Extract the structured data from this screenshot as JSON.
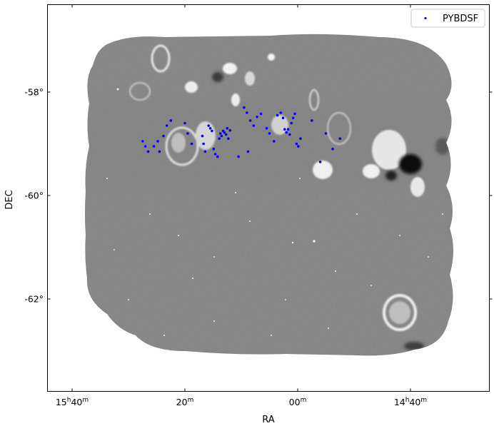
{
  "chart_data": {
    "type": "scatter",
    "xlabel": "RA",
    "ylabel": "DEC",
    "x_ticks": [
      {
        "h": "15",
        "m": "40"
      },
      {
        "h": "",
        "m": "20"
      },
      {
        "h": "",
        "m": "00"
      },
      {
        "h": "14",
        "m": "40"
      }
    ],
    "y_ticks": [
      "-58°",
      "-60°",
      "-62°"
    ],
    "legend": {
      "label": "PYBDSF",
      "position": "top-right"
    },
    "series": [
      {
        "name": "PYBDSF",
        "marker": "point",
        "color": "#0000ff",
        "points": [
          {
            "ra": "15h27.5m",
            "dec": -58.95
          },
          {
            "ra": "15h27.0m",
            "dec": -59.05
          },
          {
            "ra": "15h26.5m",
            "dec": -59.15
          },
          {
            "ra": "15h25.5m",
            "dec": -59.05
          },
          {
            "ra": "15h24.8m",
            "dec": -58.95
          },
          {
            "ra": "15h24.5m",
            "dec": -59.15
          },
          {
            "ra": "15h23.8m",
            "dec": -58.85
          },
          {
            "ra": "15h23.2m",
            "dec": -58.65
          },
          {
            "ra": "15h22.5m",
            "dec": -58.55
          },
          {
            "ra": "15h20.0m",
            "dec": -58.6
          },
          {
            "ra": "15h19.5m",
            "dec": -58.8
          },
          {
            "ra": "15h18.8m",
            "dec": -59.0
          },
          {
            "ra": "15h16.9m",
            "dec": -58.85
          },
          {
            "ra": "15h16.7m",
            "dec": -59.0
          },
          {
            "ra": "15h16.4m",
            "dec": -59.15
          },
          {
            "ra": "15h15.8m",
            "dec": -58.65
          },
          {
            "ra": "15h15.5m",
            "dec": -58.7
          },
          {
            "ra": "15h15.2m",
            "dec": -58.75
          },
          {
            "ra": "15h14.9m",
            "dec": -59.1
          },
          {
            "ra": "15h14.6m",
            "dec": -59.2
          },
          {
            "ra": "15h14.2m",
            "dec": -59.25
          },
          {
            "ra": "15h13.9m",
            "dec": -58.9
          },
          {
            "ra": "15h13.7m",
            "dec": -58.8
          },
          {
            "ra": "15h13.5m",
            "dec": -58.85
          },
          {
            "ra": "15h13.2m",
            "dec": -58.75
          },
          {
            "ra": "15h13.0m",
            "dec": -58.78
          },
          {
            "ra": "15h12.7m",
            "dec": -58.82
          },
          {
            "ra": "15h12.5m",
            "dec": -58.7
          },
          {
            "ra": "15h12.3m",
            "dec": -58.9
          },
          {
            "ra": "15h12.0m",
            "dec": -58.74
          },
          {
            "ra": "15h10.5m",
            "dec": -59.25
          },
          {
            "ra": "15h08.8m",
            "dec": -59.15
          },
          {
            "ra": "15h09.5m",
            "dec": -58.3
          },
          {
            "ra": "15h09.0m",
            "dec": -58.4
          },
          {
            "ra": "15h08.4m",
            "dec": -58.55
          },
          {
            "ra": "15h07.8m",
            "dec": -58.65
          },
          {
            "ra": "15h07.2m",
            "dec": -58.48
          },
          {
            "ra": "15h06.5m",
            "dec": -58.42
          },
          {
            "ra": "15h05.5m",
            "dec": -58.7
          },
          {
            "ra": "15h05.0m",
            "dec": -58.8
          },
          {
            "ra": "15h04.2m",
            "dec": -58.95
          },
          {
            "ra": "15h03.6m",
            "dec": -58.45
          },
          {
            "ra": "15h03.0m",
            "dec": -58.4
          },
          {
            "ra": "15h02.6m",
            "dec": -58.5
          },
          {
            "ra": "15h02.3m",
            "dec": -58.72
          },
          {
            "ra": "15h02.0m",
            "dec": -58.78
          },
          {
            "ra": "15h01.7m",
            "dec": -58.72
          },
          {
            "ra": "15h01.4m",
            "dec": -58.82
          },
          {
            "ra": "15h01.1m",
            "dec": -58.6
          },
          {
            "ra": "15h00.8m",
            "dec": -58.5
          },
          {
            "ra": "15h00.5m",
            "dec": -58.42
          },
          {
            "ra": "15h00.2m",
            "dec": -59.0
          },
          {
            "ra": "14h59.9m",
            "dec": -59.05
          },
          {
            "ra": "14h59.5m",
            "dec": -58.9
          },
          {
            "ra": "14h57.5m",
            "dec": -58.55
          },
          {
            "ra": "14h56.0m",
            "dec": -59.35
          },
          {
            "ra": "14h55.0m",
            "dec": -58.8
          },
          {
            "ra": "14h53.8m",
            "dec": -59.1
          },
          {
            "ra": "14h52.5m",
            "dec": -58.9
          }
        ]
      }
    ]
  }
}
